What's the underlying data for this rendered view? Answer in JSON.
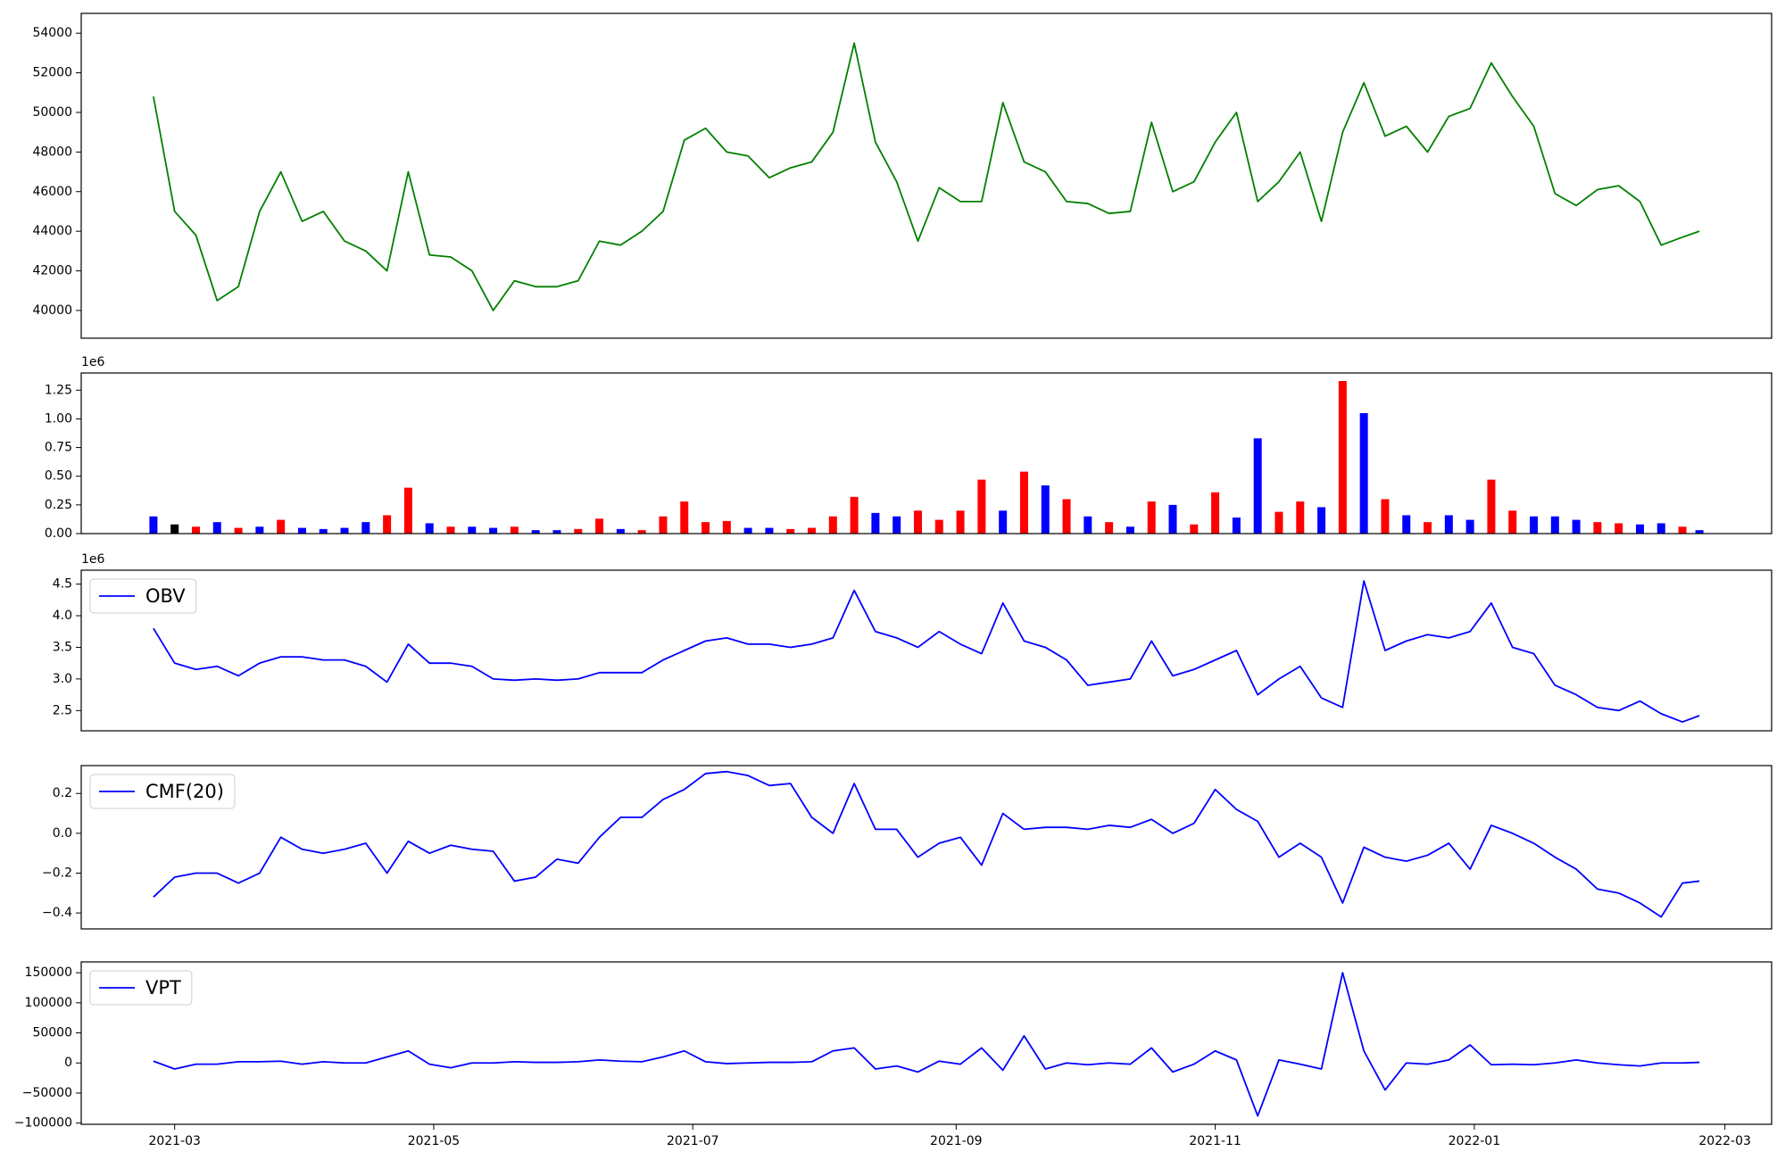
{
  "chart_data": [
    {
      "type": "line",
      "color": "#008000",
      "x": [
        "2021-02-24",
        "2021-03-01",
        "2021-03-06",
        "2021-03-11",
        "2021-03-16",
        "2021-03-21",
        "2021-03-26",
        "2021-03-31",
        "2021-04-05",
        "2021-04-10",
        "2021-04-15",
        "2021-04-20",
        "2021-04-25",
        "2021-04-30",
        "2021-05-05",
        "2021-05-10",
        "2021-05-15",
        "2021-05-20",
        "2021-05-25",
        "2021-05-30",
        "2021-06-04",
        "2021-06-09",
        "2021-06-14",
        "2021-06-19",
        "2021-06-24",
        "2021-06-29",
        "2021-07-04",
        "2021-07-09",
        "2021-07-14",
        "2021-07-19",
        "2021-07-24",
        "2021-07-29",
        "2021-08-03",
        "2021-08-08",
        "2021-08-13",
        "2021-08-18",
        "2021-08-23",
        "2021-08-28",
        "2021-09-02",
        "2021-09-07",
        "2021-09-12",
        "2021-09-17",
        "2021-09-22",
        "2021-09-27",
        "2021-10-02",
        "2021-10-07",
        "2021-10-12",
        "2021-10-17",
        "2021-10-22",
        "2021-10-27",
        "2021-11-01",
        "2021-11-06",
        "2021-11-11",
        "2021-11-16",
        "2021-11-21",
        "2021-11-26",
        "2021-12-01",
        "2021-12-06",
        "2021-12-11",
        "2021-12-16",
        "2021-12-21",
        "2021-12-26",
        "2021-12-31",
        "2022-01-05",
        "2022-01-10",
        "2022-01-15",
        "2022-01-20",
        "2022-01-25",
        "2022-01-30",
        "2022-02-04",
        "2022-02-09",
        "2022-02-14",
        "2022-02-19",
        "2022-02-23"
      ],
      "values": [
        50800,
        45000,
        43800,
        40500,
        41200,
        45000,
        47000,
        44500,
        45000,
        43500,
        43000,
        42000,
        47000,
        42800,
        42700,
        42000,
        40000,
        41500,
        41200,
        41200,
        41500,
        43500,
        43300,
        44000,
        45000,
        48600,
        49200,
        48000,
        47800,
        46700,
        47200,
        47500,
        49000,
        53500,
        48500,
        46500,
        43500,
        46200,
        45500,
        45500,
        50500,
        47500,
        47000,
        45500,
        45400,
        44900,
        45000,
        49500,
        46000,
        46500,
        48500,
        50000,
        45500,
        46500,
        48000,
        44500,
        49000,
        51500,
        48800,
        49300,
        48000,
        49800,
        50200,
        52500,
        50800,
        49300,
        45900,
        45300,
        46100,
        46300,
        45500,
        43300,
        43700,
        44000
      ],
      "xlim": [
        "2021-02-07",
        "2022-03-12"
      ],
      "ylim": [
        38600,
        55000
      ],
      "yticks": [
        40000,
        42000,
        44000,
        46000,
        48000,
        50000,
        52000,
        54000
      ]
    },
    {
      "type": "bar",
      "offset_label": "1e6",
      "x": [
        "2021-02-24",
        "2021-03-01",
        "2021-03-06",
        "2021-03-11",
        "2021-03-16",
        "2021-03-21",
        "2021-03-26",
        "2021-03-31",
        "2021-04-05",
        "2021-04-10",
        "2021-04-15",
        "2021-04-20",
        "2021-04-25",
        "2021-04-30",
        "2021-05-05",
        "2021-05-10",
        "2021-05-15",
        "2021-05-20",
        "2021-05-25",
        "2021-05-30",
        "2021-06-04",
        "2021-06-09",
        "2021-06-14",
        "2021-06-19",
        "2021-06-24",
        "2021-06-29",
        "2021-07-04",
        "2021-07-09",
        "2021-07-14",
        "2021-07-19",
        "2021-07-24",
        "2021-07-29",
        "2021-08-03",
        "2021-08-08",
        "2021-08-13",
        "2021-08-18",
        "2021-08-23",
        "2021-08-28",
        "2021-09-02",
        "2021-09-07",
        "2021-09-12",
        "2021-09-17",
        "2021-09-22",
        "2021-09-27",
        "2021-10-02",
        "2021-10-07",
        "2021-10-12",
        "2021-10-17",
        "2021-10-22",
        "2021-10-27",
        "2021-11-01",
        "2021-11-06",
        "2021-11-11",
        "2021-11-16",
        "2021-11-21",
        "2021-11-26",
        "2021-12-01",
        "2021-12-06",
        "2021-12-11",
        "2021-12-16",
        "2021-12-21",
        "2021-12-26",
        "2021-12-31",
        "2022-01-05",
        "2022-01-10",
        "2022-01-15",
        "2022-01-20",
        "2022-01-25",
        "2022-01-30",
        "2022-02-04",
        "2022-02-09",
        "2022-02-14",
        "2022-02-19",
        "2022-02-23"
      ],
      "values": [
        150000,
        80000,
        60000,
        100000,
        50000,
        60000,
        120000,
        50000,
        40000,
        50000,
        100000,
        160000,
        400000,
        90000,
        60000,
        60000,
        50000,
        60000,
        30000,
        30000,
        40000,
        130000,
        40000,
        30000,
        150000,
        280000,
        100000,
        110000,
        50000,
        50000,
        40000,
        50000,
        150000,
        320000,
        180000,
        150000,
        200000,
        120000,
        200000,
        470000,
        200000,
        540000,
        420000,
        300000,
        150000,
        100000,
        60000,
        280000,
        250000,
        80000,
        360000,
        140000,
        830000,
        190000,
        280000,
        230000,
        1330000,
        1050000,
        300000,
        160000,
        100000,
        160000,
        120000,
        470000,
        200000,
        150000,
        150000,
        120000,
        100000,
        90000,
        80000,
        90000,
        60000,
        30000
      ],
      "colors": [
        "#0000ff",
        "#000000",
        "#ff0000",
        "#0000ff",
        "#ff0000",
        "#0000ff",
        "#ff0000",
        "#0000ff",
        "#0000ff",
        "#0000ff",
        "#0000ff",
        "#ff0000",
        "#ff0000",
        "#0000ff",
        "#ff0000",
        "#0000ff",
        "#0000ff",
        "#ff0000",
        "#0000ff",
        "#0000ff",
        "#ff0000",
        "#ff0000",
        "#0000ff",
        "#ff0000",
        "#ff0000",
        "#ff0000",
        "#ff0000",
        "#ff0000",
        "#0000ff",
        "#0000ff",
        "#ff0000",
        "#ff0000",
        "#ff0000",
        "#ff0000",
        "#0000ff",
        "#0000ff",
        "#ff0000",
        "#ff0000",
        "#ff0000",
        "#ff0000",
        "#0000ff",
        "#ff0000",
        "#0000ff",
        "#ff0000",
        "#0000ff",
        "#ff0000",
        "#0000ff",
        "#ff0000",
        "#0000ff",
        "#ff0000",
        "#ff0000",
        "#0000ff",
        "#0000ff",
        "#ff0000",
        "#ff0000",
        "#0000ff",
        "#ff0000",
        "#0000ff",
        "#ff0000",
        "#0000ff",
        "#ff0000",
        "#0000ff",
        "#0000ff",
        "#ff0000",
        "#ff0000",
        "#0000ff",
        "#0000ff",
        "#0000ff",
        "#ff0000",
        "#ff0000",
        "#0000ff",
        "#0000ff",
        "#ff0000",
        "#0000ff"
      ],
      "xlim": [
        "2021-02-07",
        "2022-03-12"
      ],
      "ylim": [
        0,
        1400000
      ],
      "yticks": [
        {
          "value": 0,
          "label": "0.00"
        },
        {
          "value": 250000,
          "label": "0.25"
        },
        {
          "value": 500000,
          "label": "0.50"
        },
        {
          "value": 750000,
          "label": "0.75"
        },
        {
          "value": 1000000,
          "label": "1.00"
        },
        {
          "value": 1250000,
          "label": "1.25"
        }
      ]
    },
    {
      "type": "line",
      "offset_label": "1e6",
      "legend": "upper left",
      "x": [
        "2021-02-24",
        "2021-03-01",
        "2021-03-06",
        "2021-03-11",
        "2021-03-16",
        "2021-03-21",
        "2021-03-26",
        "2021-03-31",
        "2021-04-05",
        "2021-04-10",
        "2021-04-15",
        "2021-04-20",
        "2021-04-25",
        "2021-04-30",
        "2021-05-05",
        "2021-05-10",
        "2021-05-15",
        "2021-05-20",
        "2021-05-25",
        "2021-05-30",
        "2021-06-04",
        "2021-06-09",
        "2021-06-14",
        "2021-06-19",
        "2021-06-24",
        "2021-06-29",
        "2021-07-04",
        "2021-07-09",
        "2021-07-14",
        "2021-07-19",
        "2021-07-24",
        "2021-07-29",
        "2021-08-03",
        "2021-08-08",
        "2021-08-13",
        "2021-08-18",
        "2021-08-23",
        "2021-08-28",
        "2021-09-02",
        "2021-09-07",
        "2021-09-12",
        "2021-09-17",
        "2021-09-22",
        "2021-09-27",
        "2021-10-02",
        "2021-10-07",
        "2021-10-12",
        "2021-10-17",
        "2021-10-22",
        "2021-10-27",
        "2021-11-01",
        "2021-11-06",
        "2021-11-11",
        "2021-11-16",
        "2021-11-21",
        "2021-11-26",
        "2021-12-01",
        "2021-12-06",
        "2021-12-11",
        "2021-12-16",
        "2021-12-21",
        "2021-12-26",
        "2021-12-31",
        "2022-01-05",
        "2022-01-10",
        "2022-01-15",
        "2022-01-20",
        "2022-01-25",
        "2022-01-30",
        "2022-02-04",
        "2022-02-09",
        "2022-02-14",
        "2022-02-19",
        "2022-02-23"
      ],
      "series": [
        {
          "name": "OBV",
          "color": "#0000ff",
          "values": [
            3800000,
            3250000,
            3150000,
            3200000,
            3050000,
            3250000,
            3350000,
            3350000,
            3300000,
            3300000,
            3200000,
            2950000,
            3550000,
            3250000,
            3250000,
            3200000,
            3000000,
            2980000,
            3000000,
            2980000,
            3000000,
            3100000,
            3100000,
            3100000,
            3300000,
            3450000,
            3600000,
            3650000,
            3550000,
            3550000,
            3500000,
            3550000,
            3650000,
            4400000,
            3750000,
            3650000,
            3500000,
            3750000,
            3550000,
            3400000,
            4200000,
            3600000,
            3500000,
            3300000,
            2900000,
            2950000,
            3000000,
            3600000,
            3050000,
            3150000,
            3300000,
            3450000,
            2750000,
            3000000,
            3200000,
            2700000,
            2550000,
            4550000,
            3450000,
            3600000,
            3700000,
            3650000,
            3750000,
            4200000,
            3500000,
            3400000,
            2900000,
            2750000,
            2550000,
            2500000,
            2650000,
            2450000,
            2320000,
            2420000
          ]
        }
      ],
      "xlim": [
        "2021-02-07",
        "2022-03-12"
      ],
      "ylim": [
        2180000,
        4720000
      ],
      "yticks": [
        {
          "value": 2500000,
          "label": "2.5"
        },
        {
          "value": 3000000,
          "label": "3.0"
        },
        {
          "value": 3500000,
          "label": "3.5"
        },
        {
          "value": 4000000,
          "label": "4.0"
        },
        {
          "value": 4500000,
          "label": "4.5"
        }
      ]
    },
    {
      "type": "line",
      "legend": "upper left",
      "x": [
        "2021-02-24",
        "2021-03-01",
        "2021-03-06",
        "2021-03-11",
        "2021-03-16",
        "2021-03-21",
        "2021-03-26",
        "2021-03-31",
        "2021-04-05",
        "2021-04-10",
        "2021-04-15",
        "2021-04-20",
        "2021-04-25",
        "2021-04-30",
        "2021-05-05",
        "2021-05-10",
        "2021-05-15",
        "2021-05-20",
        "2021-05-25",
        "2021-05-30",
        "2021-06-04",
        "2021-06-09",
        "2021-06-14",
        "2021-06-19",
        "2021-06-24",
        "2021-06-29",
        "2021-07-04",
        "2021-07-09",
        "2021-07-14",
        "2021-07-19",
        "2021-07-24",
        "2021-07-29",
        "2021-08-03",
        "2021-08-08",
        "2021-08-13",
        "2021-08-18",
        "2021-08-23",
        "2021-08-28",
        "2021-09-02",
        "2021-09-07",
        "2021-09-12",
        "2021-09-17",
        "2021-09-22",
        "2021-09-27",
        "2021-10-02",
        "2021-10-07",
        "2021-10-12",
        "2021-10-17",
        "2021-10-22",
        "2021-10-27",
        "2021-11-01",
        "2021-11-06",
        "2021-11-11",
        "2021-11-16",
        "2021-11-21",
        "2021-11-26",
        "2021-12-01",
        "2021-12-06",
        "2021-12-11",
        "2021-12-16",
        "2021-12-21",
        "2021-12-26",
        "2021-12-31",
        "2022-01-05",
        "2022-01-10",
        "2022-01-15",
        "2022-01-20",
        "2022-01-25",
        "2022-01-30",
        "2022-02-04",
        "2022-02-09",
        "2022-02-14",
        "2022-02-19",
        "2022-02-23"
      ],
      "series": [
        {
          "name": "CMF(20)",
          "color": "#0000ff",
          "values": [
            -0.32,
            -0.22,
            -0.2,
            -0.2,
            -0.25,
            -0.2,
            -0.02,
            -0.08,
            -0.1,
            -0.08,
            -0.05,
            -0.2,
            -0.04,
            -0.1,
            -0.06,
            -0.08,
            -0.09,
            -0.24,
            -0.22,
            -0.13,
            -0.15,
            -0.02,
            0.08,
            0.08,
            0.17,
            0.22,
            0.3,
            0.31,
            0.29,
            0.24,
            0.25,
            0.08,
            0,
            0.25,
            0.02,
            0.02,
            -0.12,
            -0.05,
            -0.02,
            -0.16,
            0.1,
            0.02,
            0.03,
            0.03,
            0.02,
            0.04,
            0.03,
            0.07,
            0,
            0.05,
            0.22,
            0.12,
            0.06,
            -0.12,
            -0.05,
            -0.12,
            -0.35,
            -0.07,
            -0.12,
            -0.14,
            -0.11,
            -0.05,
            -0.18,
            0.04,
            0,
            -0.05,
            -0.12,
            -0.18,
            -0.28,
            -0.3,
            -0.35,
            -0.42,
            -0.25,
            -0.24
          ]
        }
      ],
      "xlim": [
        "2021-02-07",
        "2022-03-12"
      ],
      "ylim": [
        -0.48,
        0.34
      ],
      "yticks": [
        {
          "value": -0.4,
          "label": "−0.4"
        },
        {
          "value": -0.2,
          "label": "−0.2"
        },
        {
          "value": 0,
          "label": "0.0"
        },
        0.2
      ]
    },
    {
      "type": "line",
      "legend": "upper left",
      "x": [
        "2021-02-24",
        "2021-03-01",
        "2021-03-06",
        "2021-03-11",
        "2021-03-16",
        "2021-03-21",
        "2021-03-26",
        "2021-03-31",
        "2021-04-05",
        "2021-04-10",
        "2021-04-15",
        "2021-04-20",
        "2021-04-25",
        "2021-04-30",
        "2021-05-05",
        "2021-05-10",
        "2021-05-15",
        "2021-05-20",
        "2021-05-25",
        "2021-05-30",
        "2021-06-04",
        "2021-06-09",
        "2021-06-14",
        "2021-06-19",
        "2021-06-24",
        "2021-06-29",
        "2021-07-04",
        "2021-07-09",
        "2021-07-14",
        "2021-07-19",
        "2021-07-24",
        "2021-07-29",
        "2021-08-03",
        "2021-08-08",
        "2021-08-13",
        "2021-08-18",
        "2021-08-23",
        "2021-08-28",
        "2021-09-02",
        "2021-09-07",
        "2021-09-12",
        "2021-09-17",
        "2021-09-22",
        "2021-09-27",
        "2021-10-02",
        "2021-10-07",
        "2021-10-12",
        "2021-10-17",
        "2021-10-22",
        "2021-10-27",
        "2021-11-01",
        "2021-11-06",
        "2021-11-11",
        "2021-11-16",
        "2021-11-21",
        "2021-11-26",
        "2021-12-01",
        "2021-12-06",
        "2021-12-11",
        "2021-12-16",
        "2021-12-21",
        "2021-12-26",
        "2021-12-31",
        "2022-01-05",
        "2022-01-10",
        "2022-01-15",
        "2022-01-20",
        "2022-01-25",
        "2022-01-30",
        "2022-02-04",
        "2022-02-09",
        "2022-02-14",
        "2022-02-19",
        "2022-02-23"
      ],
      "series": [
        {
          "name": "VPT",
          "color": "#0000ff",
          "values": [
            3000,
            -10000,
            -2000,
            -2000,
            2000,
            2000,
            3000,
            -2000,
            2000,
            0,
            0,
            10000,
            20000,
            -2000,
            -8000,
            0,
            0,
            2000,
            1000,
            1000,
            2000,
            5000,
            3000,
            2000,
            10000,
            20000,
            2000,
            -1000,
            0,
            1000,
            1000,
            2000,
            20000,
            25000,
            -10000,
            -5000,
            -15000,
            3000,
            -2000,
            25000,
            -12000,
            45000,
            -10000,
            0,
            -3000,
            0,
            -2000,
            25000,
            -15000,
            -2000,
            20000,
            5000,
            -88000,
            5000,
            -2000,
            -10000,
            150000,
            20000,
            -45000,
            0,
            -2000,
            5000,
            30000,
            -3000,
            -2000,
            -3000,
            0,
            5000,
            0,
            -3000,
            -5000,
            0,
            0,
            1000
          ]
        }
      ],
      "xlim": [
        "2021-02-07",
        "2022-03-12"
      ],
      "ylim": [
        -102000,
        168000
      ],
      "yticks": [
        {
          "value": -100000,
          "label": "−100000"
        },
        {
          "value": -50000,
          "label": "−50000"
        },
        0,
        50000,
        100000,
        150000
      ],
      "xticks": [
        "2021-03",
        "2021-05",
        "2021-07",
        "2021-09",
        "2021-11",
        "2022-01",
        "2022-03"
      ]
    }
  ]
}
